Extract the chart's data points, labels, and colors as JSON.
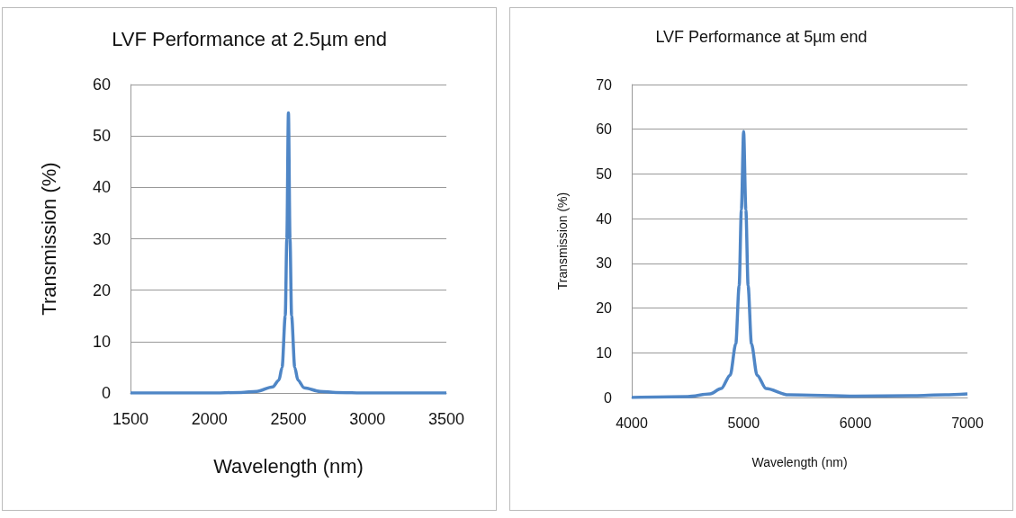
{
  "chart_data": [
    {
      "type": "line",
      "title": "LVF Performance at 2.5µm end",
      "xlabel": "Wavelength (nm)",
      "ylabel": "Transmission (%)",
      "xlim": [
        1500,
        3500
      ],
      "xticks": [
        1500,
        2000,
        2500,
        3000,
        3500
      ],
      "ylim": [
        0,
        60
      ],
      "yticks": [
        0,
        10,
        20,
        30,
        40,
        50,
        60
      ],
      "grid": "y",
      "marker": "none",
      "line_style": "solid",
      "series": [
        {
          "color": "#4f86c6",
          "x": [
            1500,
            2000,
            2200,
            2300,
            2400,
            2440,
            2460,
            2480,
            2490,
            2500,
            2510,
            2520,
            2540,
            2560,
            2600,
            2700,
            2800,
            3000,
            3500
          ],
          "values": [
            0,
            0,
            0.1,
            0.3,
            1.2,
            2.5,
            5,
            15,
            30,
            54.5,
            30,
            15,
            5,
            2.5,
            1,
            0.3,
            0.1,
            0,
            0
          ]
        }
      ]
    },
    {
      "type": "line",
      "title": "LVF Performance at 5µm end",
      "xlabel": "Wavelength (nm)",
      "ylabel": "Transmission (%)",
      "xlim": [
        4000,
        7000
      ],
      "xticks": [
        4000,
        5000,
        6000,
        7000
      ],
      "ylim": [
        0,
        70
      ],
      "yticks": [
        0,
        10,
        20,
        30,
        40,
        50,
        60,
        70
      ],
      "grid": "y",
      "marker": "none",
      "line_style": "solid",
      "series": [
        {
          "color": "#4f86c6",
          "x": [
            4000,
            4500,
            4700,
            4800,
            4880,
            4930,
            4960,
            4980,
            5000,
            5020,
            5040,
            5070,
            5120,
            5200,
            5400,
            6000,
            6500,
            6800,
            7000
          ],
          "values": [
            0,
            0.2,
            0.8,
            2,
            5,
            12,
            25,
            42,
            59.5,
            42,
            25,
            12,
            5,
            2,
            0.6,
            0.3,
            0.4,
            0.6,
            0.8
          ]
        }
      ]
    }
  ]
}
